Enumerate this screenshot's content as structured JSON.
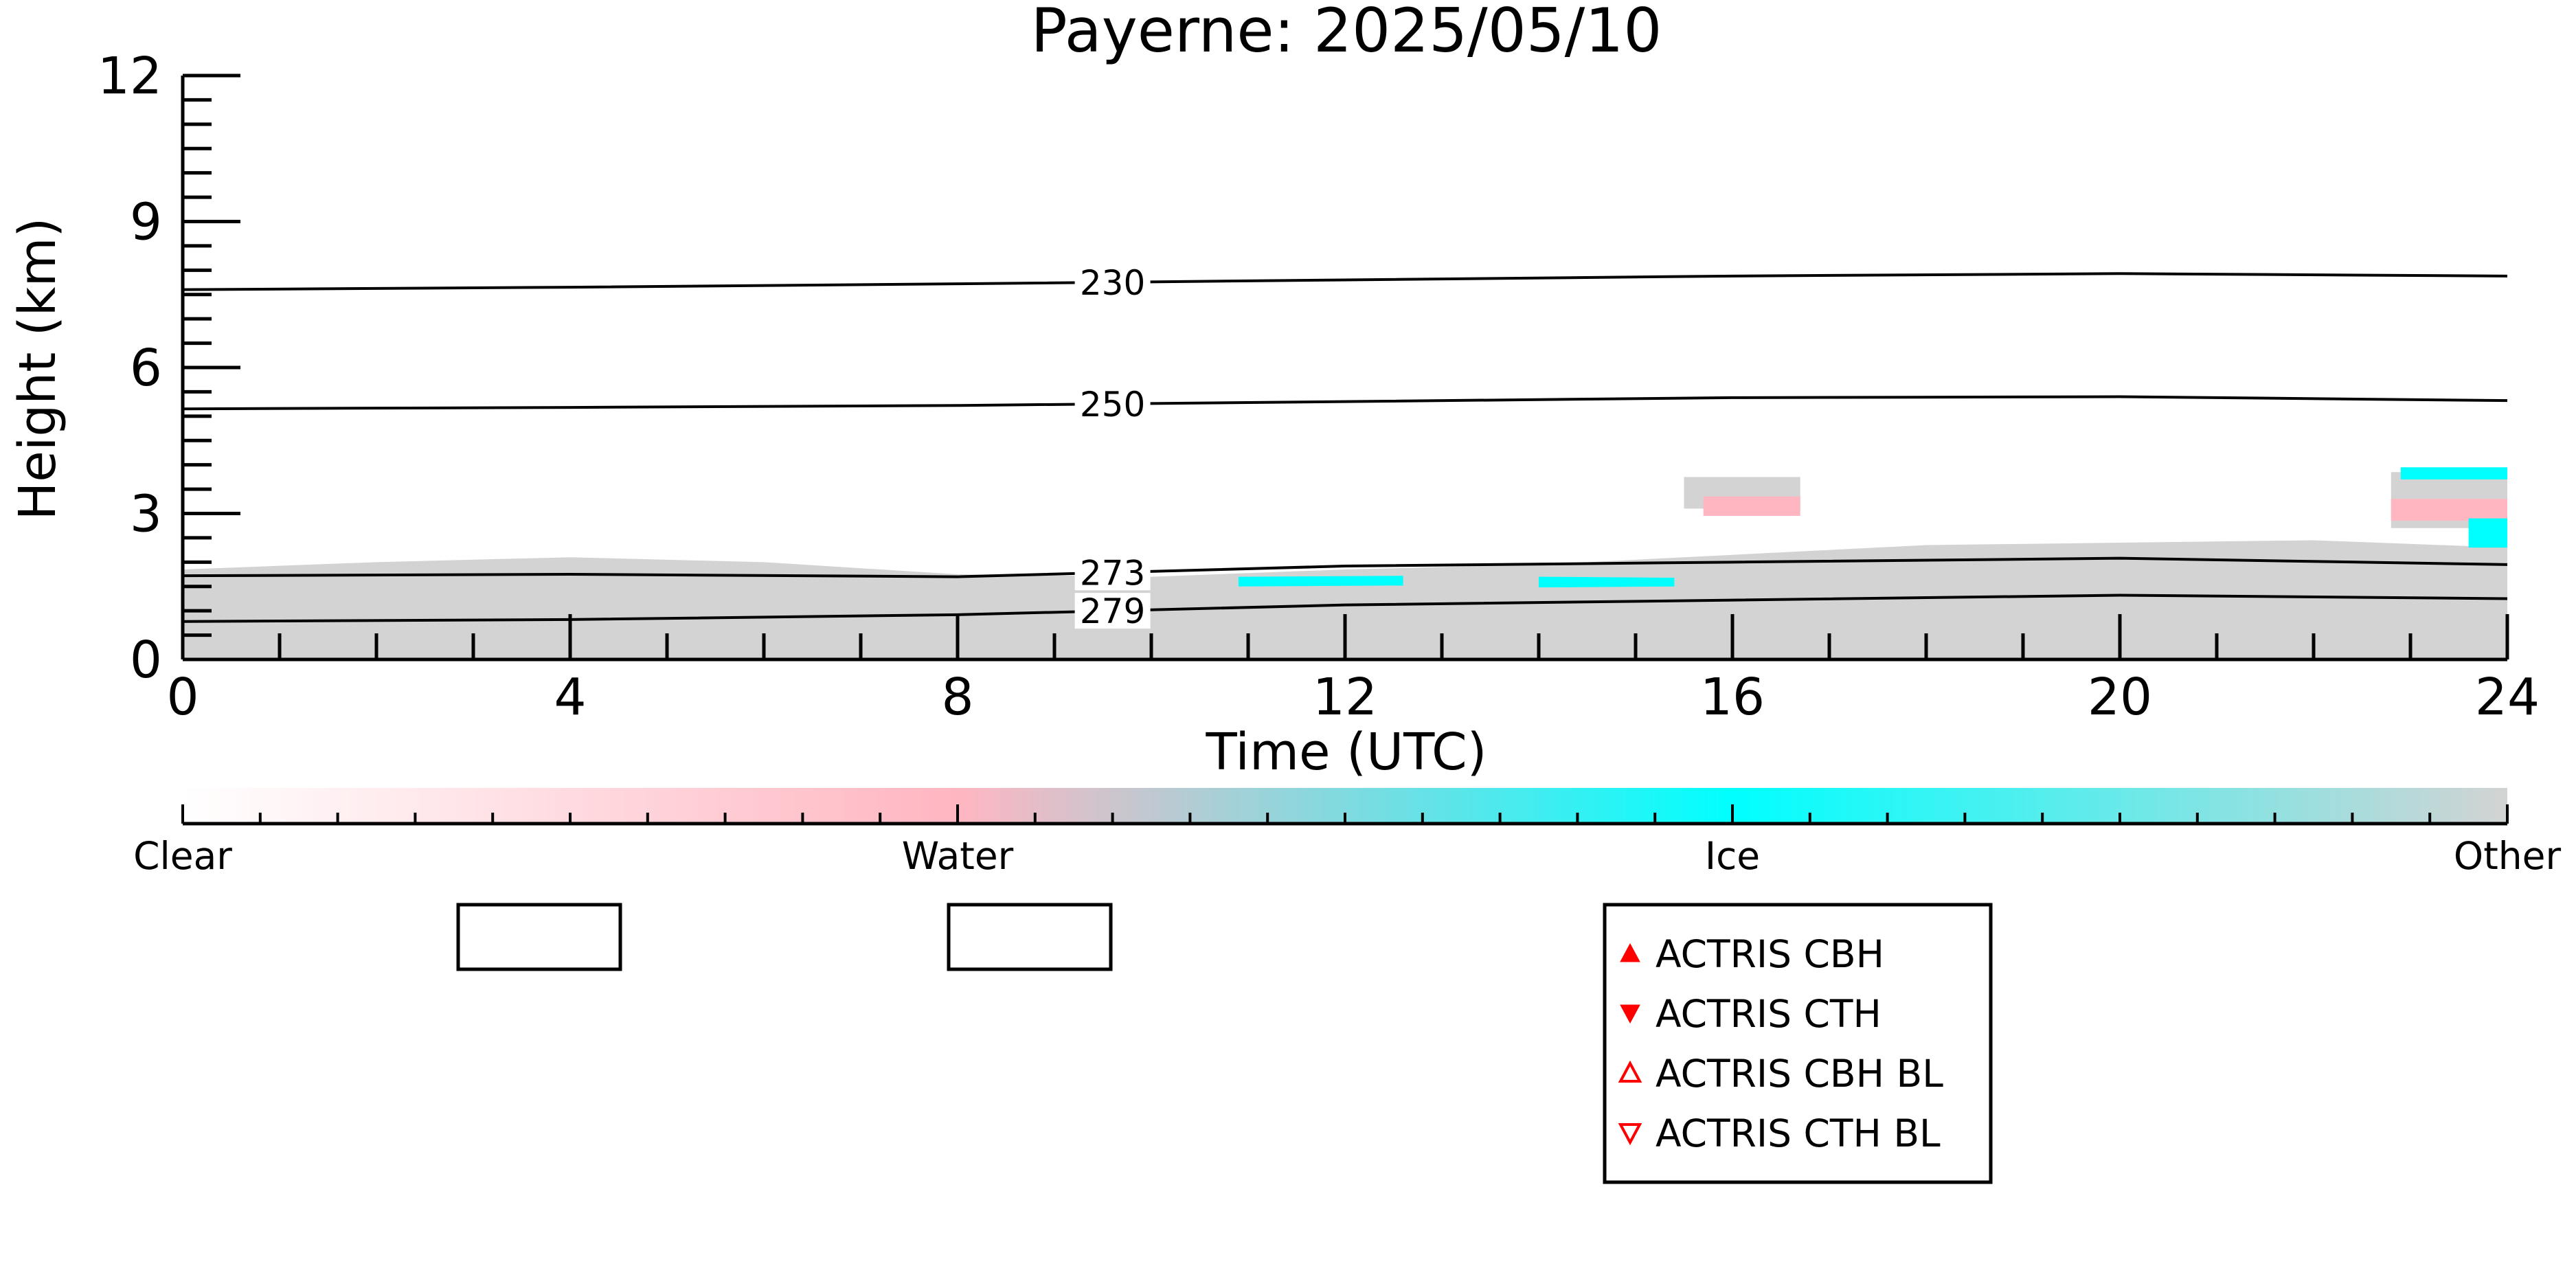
{
  "chart_data": {
    "type": "heatmap",
    "title": "Payerne: 2025/05/10",
    "xlabel": "Time (UTC)",
    "ylabel": "Height (km)",
    "xlim": [
      0,
      24
    ],
    "ylim": [
      0,
      12
    ],
    "x_ticks": [
      0,
      4,
      8,
      12,
      16,
      20,
      24
    ],
    "y_ticks": [
      0,
      3,
      6,
      9,
      12
    ],
    "contours": [
      {
        "label": "230",
        "points": [
          [
            0,
            7.6
          ],
          [
            4,
            7.65
          ],
          [
            8,
            7.72
          ],
          [
            12,
            7.8
          ],
          [
            16,
            7.88
          ],
          [
            20,
            7.93
          ],
          [
            24,
            7.88
          ]
        ],
        "label_x": 9.6
      },
      {
        "label": "250",
        "points": [
          [
            0,
            5.15
          ],
          [
            4,
            5.18
          ],
          [
            8,
            5.22
          ],
          [
            12,
            5.3
          ],
          [
            16,
            5.38
          ],
          [
            20,
            5.4
          ],
          [
            24,
            5.32
          ]
        ],
        "label_x": 9.6
      },
      {
        "label": "273",
        "points": [
          [
            0,
            1.72
          ],
          [
            4,
            1.75
          ],
          [
            8,
            1.7
          ],
          [
            12,
            1.92
          ],
          [
            16,
            2.0
          ],
          [
            20,
            2.08
          ],
          [
            24,
            1.95
          ]
        ],
        "label_x": 9.6
      },
      {
        "label": "279",
        "points": [
          [
            0,
            0.78
          ],
          [
            4,
            0.82
          ],
          [
            8,
            0.92
          ],
          [
            12,
            1.12
          ],
          [
            16,
            1.22
          ],
          [
            20,
            1.32
          ],
          [
            24,
            1.25
          ]
        ],
        "label_x": 9.6
      }
    ],
    "regions": [
      {
        "class": "Other",
        "color": "#d3d3d3",
        "points": [
          [
            0,
            0
          ],
          [
            0,
            1.85
          ],
          [
            2,
            2.0
          ],
          [
            4,
            2.1
          ],
          [
            6,
            2.0
          ],
          [
            8,
            1.75
          ],
          [
            10,
            1.7
          ],
          [
            12,
            1.85
          ],
          [
            14,
            1.95
          ],
          [
            16,
            2.15
          ],
          [
            18,
            2.35
          ],
          [
            20,
            2.4
          ],
          [
            22,
            2.45
          ],
          [
            24,
            2.3
          ],
          [
            24,
            0
          ]
        ]
      },
      {
        "class": "Other",
        "color": "#d3d3d3",
        "points": [
          [
            15.5,
            3.1
          ],
          [
            15.5,
            3.75
          ],
          [
            16.7,
            3.75
          ],
          [
            16.7,
            3.1
          ]
        ]
      },
      {
        "class": "Other",
        "color": "#d3d3d3",
        "points": [
          [
            22.8,
            2.7
          ],
          [
            22.8,
            3.85
          ],
          [
            24,
            3.85
          ],
          [
            24,
            2.7
          ]
        ]
      },
      {
        "class": "Water",
        "color": "#ffb6c1",
        "points": [
          [
            15.7,
            2.95
          ],
          [
            15.7,
            3.35
          ],
          [
            16.7,
            3.35
          ],
          [
            16.7,
            2.95
          ]
        ]
      },
      {
        "class": "Water",
        "color": "#ffb6c1",
        "points": [
          [
            22.8,
            2.85
          ],
          [
            22.8,
            3.3
          ],
          [
            24,
            3.3
          ],
          [
            24,
            2.85
          ]
        ]
      },
      {
        "class": "Ice",
        "color": "#00ffff",
        "points": [
          [
            10.9,
            1.5
          ],
          [
            10.9,
            1.7
          ],
          [
            12.6,
            1.72
          ],
          [
            12.6,
            1.52
          ]
        ]
      },
      {
        "class": "Ice",
        "color": "#00ffff",
        "points": [
          [
            14.0,
            1.48
          ],
          [
            14.0,
            1.7
          ],
          [
            15.4,
            1.68
          ],
          [
            15.4,
            1.5
          ]
        ]
      },
      {
        "class": "Ice",
        "color": "#00ffff",
        "points": [
          [
            22.9,
            3.7
          ],
          [
            22.9,
            3.95
          ],
          [
            24,
            3.95
          ],
          [
            24,
            3.7
          ]
        ]
      },
      {
        "class": "Ice",
        "color": "#00ffff",
        "points": [
          [
            23.6,
            2.3
          ],
          [
            23.6,
            2.9
          ],
          [
            24,
            2.9
          ],
          [
            24,
            2.3
          ]
        ]
      }
    ],
    "colorbar": {
      "labels": [
        "Clear",
        "Water",
        "Ice",
        "Other"
      ],
      "colors": [
        "#ffffff",
        "#ffb6c1",
        "#00ffff",
        "#d3d3d3"
      ]
    },
    "legend": {
      "placement": "bottom-center",
      "entries": [
        {
          "label": "ACTRIS CBH",
          "marker": "triangle-up-filled",
          "color": "#ff0000"
        },
        {
          "label": "ACTRIS CTH",
          "marker": "triangle-down-filled",
          "color": "#ff0000"
        },
        {
          "label": "ACTRIS CBH BL",
          "marker": "triangle-up-open",
          "color": "#ff0000"
        },
        {
          "label": "ACTRIS CTH BL",
          "marker": "triangle-down-open",
          "color": "#ff0000"
        }
      ]
    },
    "empty_legend_boxes": 2
  }
}
